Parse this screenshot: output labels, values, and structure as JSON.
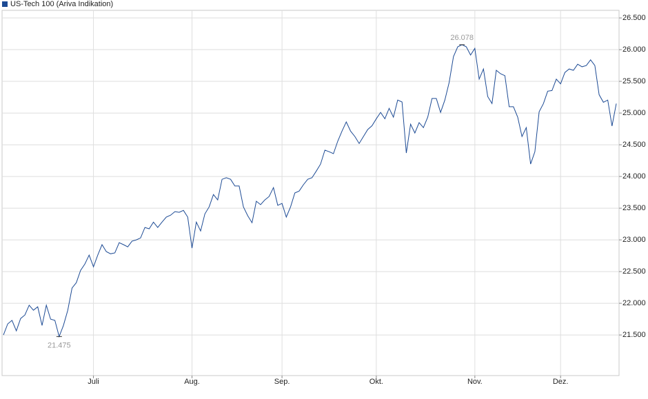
{
  "chart_data": {
    "type": "line",
    "legend": "US-Tech 100 (Ariva Indikation)",
    "color": "#1c4a94",
    "grid": true,
    "categories": [
      null,
      null,
      null,
      null,
      null,
      null,
      null,
      null,
      null,
      null,
      null,
      null,
      null,
      null,
      null,
      null,
      null,
      null,
      null,
      null,
      null,
      "Juli",
      null,
      null,
      null,
      null,
      null,
      null,
      null,
      null,
      null,
      null,
      null,
      null,
      null,
      null,
      null,
      null,
      null,
      null,
      null,
      null,
      null,
      null,
      "Aug.",
      null,
      null,
      null,
      null,
      null,
      null,
      null,
      null,
      null,
      null,
      null,
      null,
      null,
      null,
      null,
      null,
      null,
      null,
      null,
      null,
      "Sep.",
      null,
      null,
      null,
      null,
      null,
      null,
      null,
      null,
      null,
      null,
      null,
      null,
      null,
      null,
      null,
      null,
      null,
      null,
      null,
      null,
      null,
      "Okt.",
      null,
      null,
      null,
      null,
      null,
      null,
      null,
      null,
      null,
      null,
      null,
      null,
      null,
      null,
      null,
      null,
      null,
      null,
      null,
      null,
      null,
      null,
      "Nov.",
      null,
      null,
      null,
      null,
      null,
      null,
      null,
      null,
      null,
      null,
      null,
      null,
      null,
      null,
      null,
      null,
      null,
      null,
      null,
      "Dez.",
      null,
      null,
      null,
      null,
      null,
      null,
      null,
      null,
      null,
      null,
      null,
      null,
      null
    ],
    "values": [
      21500,
      21675,
      21730,
      21565,
      21760,
      21815,
      21970,
      21890,
      21945,
      21650,
      21970,
      21750,
      21730,
      21475,
      21650,
      21890,
      22240,
      22325,
      22520,
      22620,
      22760,
      22575,
      22760,
      22925,
      22815,
      22780,
      22795,
      22955,
      22925,
      22890,
      22980,
      23000,
      23030,
      23195,
      23175,
      23280,
      23195,
      23280,
      23360,
      23390,
      23445,
      23435,
      23465,
      23360,
      22870,
      23280,
      23140,
      23410,
      23520,
      23715,
      23630,
      23955,
      23980,
      23955,
      23850,
      23850,
      23520,
      23380,
      23270,
      23610,
      23555,
      23630,
      23685,
      23825,
      23545,
      23575,
      23360,
      23520,
      23740,
      23770,
      23870,
      23955,
      23980,
      24085,
      24195,
      24415,
      24390,
      24360,
      24555,
      24715,
      24860,
      24715,
      24630,
      24520,
      24630,
      24740,
      24800,
      24910,
      25010,
      24910,
      25075,
      24935,
      25205,
      25175,
      24370,
      24825,
      24685,
      24850,
      24770,
      24935,
      25230,
      25230,
      25010,
      25205,
      25480,
      25890,
      26045,
      26078,
      26045,
      25915,
      26020,
      25535,
      25695,
      25260,
      25150,
      25675,
      25620,
      25590,
      25100,
      25100,
      24935,
      24630,
      24770,
      24195,
      24390,
      25020,
      25150,
      25345,
      25355,
      25535,
      25460,
      25640,
      25695,
      25675,
      25770,
      25730,
      25750,
      25840,
      25750,
      25290,
      25170,
      25205,
      24795,
      25150
    ],
    "annotations": [
      {
        "label": "26.078",
        "value": 26078
      },
      {
        "label": "21.475",
        "value": 21475
      }
    ],
    "ylim": [
      20860,
      26620
    ],
    "yticks": [
      {
        "value": 21500,
        "label": "21.500"
      },
      {
        "value": 22000,
        "label": "22.000"
      },
      {
        "value": 22500,
        "label": "22.500"
      },
      {
        "value": 23000,
        "label": "23.000"
      },
      {
        "value": 23500,
        "label": "23.500"
      },
      {
        "value": 24000,
        "label": "24.000"
      },
      {
        "value": 24500,
        "label": "24.500"
      },
      {
        "value": 25000,
        "label": "25.000"
      },
      {
        "value": 25500,
        "label": "25.500"
      },
      {
        "value": 26000,
        "label": "26.000"
      },
      {
        "value": 26500,
        "label": "26.500"
      }
    ]
  }
}
